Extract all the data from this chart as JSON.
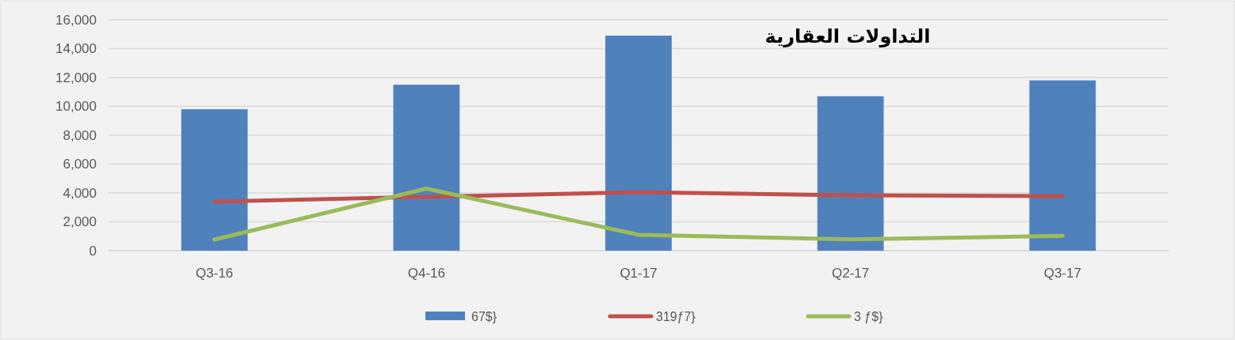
{
  "chart_data": {
    "type": "bar",
    "title": "التداولات العقارية",
    "categories": [
      "Q3-16",
      "Q4-16",
      "Q1-17",
      "Q2-17",
      "Q3-17"
    ],
    "series": [
      {
        "name": "67$}",
        "color": "#4f81bd",
        "values": [
          9800,
          11500,
          14900,
          10700,
          11800
        ]
      },
      {
        "name": "319ƒ7}",
        "type": "line",
        "color": "#c0504d",
        "values": [
          3400,
          3730,
          4050,
          3830,
          3780
        ]
      },
      {
        "name": "3 ƒ$}",
        "type": "line",
        "color": "#9bbb59",
        "values": [
          770,
          4300,
          1100,
          780,
          1030
        ]
      }
    ],
    "ylim": [
      0,
      16000
    ],
    "yticks": [
      {
        "value": 0,
        "label": "0"
      },
      {
        "value": 2000,
        "label": "2,000"
      },
      {
        "value": 4000,
        "label": "4,000"
      },
      {
        "value": 6000,
        "label": "6,000"
      },
      {
        "value": 8000,
        "label": "8,000"
      },
      {
        "value": 10000,
        "label": "10,000"
      },
      {
        "value": 12000,
        "label": "12,000"
      },
      {
        "value": 14000,
        "label": "14,000"
      },
      {
        "value": 16000,
        "label": "16,000"
      }
    ],
    "grid": "y",
    "legend": "bottom",
    "marker": "none",
    "line_style": "solid"
  }
}
